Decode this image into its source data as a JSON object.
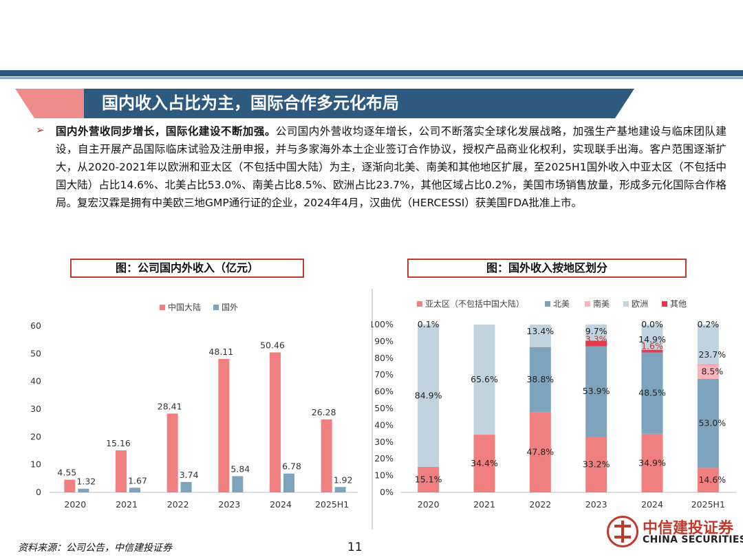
{
  "slide_title": "国内收入占比为主，国际合作多元化布局",
  "paragraph": {
    "bold_lead": "国内外营收同步增长，国际化建设不断加强。",
    "text": "公司国内外营收均逐年增长，公司不断落实全球化发展战略，加强生产基地建设与临床团队建设，自主开展产品国际临床试验及注册申报，并与多家海外本土企业签订合作协议，授权产品商业化权利，实现联手出海。客户范围逐渐扩大，从2020-2021年以欧洲和亚太区（不包括中国大陆）为主，逐渐向北美、南美和其他地区扩展，至2025H1国外收入中亚太区（不包括中国大陆）占比14.6%、北美占比53.0%、南美占比8.5%、欧洲占比23.7%，其他区域占比0.2%，美国市场销售放量，形成多元化国际合作格局。复宏汉霖是拥有中美欧三地GMP通行证的企业，2024年4月，汉曲优（HERCESSI）获美国FDA批准上市。"
  },
  "source_note": "资料来源：公司公告，中信建投证券",
  "page_number": "11",
  "logo": {
    "cn": "中信建投证券",
    "en": "CHINA SECURITIES"
  },
  "colors": {
    "red": "#f07f80",
    "blue": "#7ea3bd",
    "pink": "#f6b4bf",
    "light": "#c1d3df",
    "darkred": "#e53a4d",
    "navy": "#2f5a80"
  },
  "chart_data": [
    {
      "type": "bar",
      "title": "图：公司国内外收入（亿元）",
      "categories": [
        "2020",
        "2021",
        "2022",
        "2023",
        "2024",
        "2025H1"
      ],
      "series": [
        {
          "name": "中国大陆",
          "values": [
            4.55,
            15.16,
            28.41,
            48.11,
            50.46,
            26.28
          ]
        },
        {
          "name": "国外",
          "values": [
            1.32,
            1.67,
            3.74,
            5.84,
            6.78,
            1.92
          ]
        }
      ],
      "ylim": [
        0,
        60
      ],
      "yticks": [
        0,
        10,
        20,
        30,
        40,
        50,
        60
      ],
      "legend": "top-center"
    },
    {
      "type": "bar",
      "stacked": true,
      "title": "图：国外收入按地区划分",
      "categories": [
        "2020",
        "2021",
        "2022",
        "2023",
        "2024",
        "2025H1"
      ],
      "series": [
        {
          "name": "亚太区（不包括中国大陆）",
          "values": [
            15.1,
            34.4,
            47.8,
            33.2,
            34.9,
            14.6
          ]
        },
        {
          "name": "北美",
          "values": [
            0,
            0,
            38.8,
            53.9,
            48.5,
            53.0
          ]
        },
        {
          "name": "南美",
          "values": [
            0,
            0,
            0,
            0,
            0,
            8.5
          ]
        },
        {
          "name": "欧洲",
          "values": [
            84.9,
            65.6,
            13.4,
            9.7,
            14.9,
            23.7
          ]
        },
        {
          "name": "其他",
          "values": [
            0.1,
            0,
            0,
            3.3,
            1.6,
            0.2
          ]
        }
      ],
      "labels": [
        {
          "cat": 0,
          "series": 0,
          "text": "15.1%"
        },
        {
          "cat": 0,
          "series": 3,
          "text": "84.9%"
        },
        {
          "cat": 0,
          "series": 4,
          "text": "0.1%"
        },
        {
          "cat": 1,
          "series": 0,
          "text": "34.4%"
        },
        {
          "cat": 1,
          "series": 3,
          "text": "65.6%"
        },
        {
          "cat": 2,
          "series": 0,
          "text": "47.8%"
        },
        {
          "cat": 2,
          "series": 1,
          "text": "38.8%"
        },
        {
          "cat": 2,
          "series": 3,
          "text": "13.4%"
        },
        {
          "cat": 3,
          "series": 0,
          "text": "33.2%"
        },
        {
          "cat": 3,
          "series": 1,
          "text": "53.9%"
        },
        {
          "cat": 3,
          "series": 4,
          "text": "3.3%"
        },
        {
          "cat": 3,
          "series": 3,
          "text": "9.7%"
        },
        {
          "cat": 4,
          "series": 0,
          "text": "34.9%"
        },
        {
          "cat": 4,
          "series": 1,
          "text": "48.5%"
        },
        {
          "cat": 4,
          "series": 4,
          "text": "1.6%"
        },
        {
          "cat": 4,
          "series": 3,
          "text": "14.9%"
        },
        {
          "cat": 4,
          "series": 2,
          "text": "0.0%"
        },
        {
          "cat": 5,
          "series": 0,
          "text": "14.6%"
        },
        {
          "cat": 5,
          "series": 1,
          "text": "53.0%"
        },
        {
          "cat": 5,
          "series": 2,
          "text": "8.5%"
        },
        {
          "cat": 5,
          "series": 3,
          "text": "23.7%"
        },
        {
          "cat": 5,
          "series": 4,
          "text": "0.2%"
        }
      ],
      "ylim": [
        0,
        100
      ],
      "yticks": [
        "0%",
        "10%",
        "20%",
        "30%",
        "40%",
        "50%",
        "60%",
        "70%",
        "80%",
        "90%",
        "100%"
      ],
      "legend": "top-center"
    }
  ]
}
